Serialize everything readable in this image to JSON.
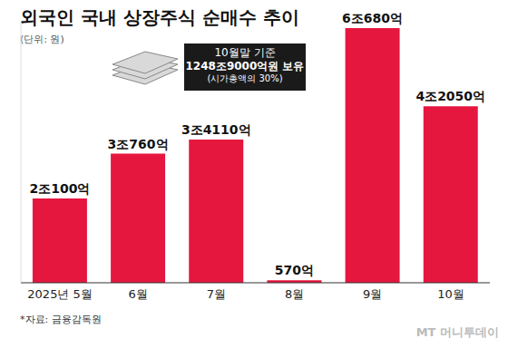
{
  "chart_data": {
    "type": "bar",
    "title": "외국인 국내 상장주식 순매수 추이",
    "subtitle": "(단위: 원)",
    "categories": [
      "2025년 5월",
      "6월",
      "7월",
      "8월",
      "9월",
      "10월"
    ],
    "values": [
      2010000000000,
      3076000000000,
      3411000000000,
      57000000000,
      6068000000000,
      4205000000000
    ],
    "value_labels": [
      "2조100억",
      "3조760억",
      "3조4110억",
      "570억",
      "6조680억",
      "4조2050억"
    ],
    "color": "#e5173f",
    "ylim": [
      0,
      6200000000000
    ],
    "data_labels": true,
    "tick_labels": "x",
    "grid": false,
    "annotations": [
      "10월말 기준",
      "1248조9000억원 보유",
      "(시가총액의 30%)"
    ],
    "source": "*자료: 금융감독원",
    "watermark": "MT 머니투데이"
  }
}
